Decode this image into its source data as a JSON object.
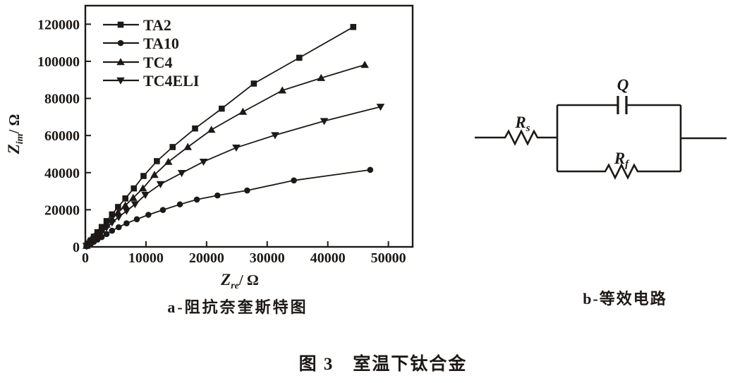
{
  "colors": {
    "ink": "#1d1916",
    "background": "#ffffff"
  },
  "captions": {
    "sub_a": "a-阻抗奈奎斯特图",
    "sub_b": "b-等效电路",
    "main": "图 3　室温下钛合金"
  },
  "circuit": {
    "labels": {
      "rs_main": "R",
      "rs_sub": "s",
      "q": "Q",
      "rf_main": "R",
      "rf_sub": "f"
    }
  },
  "chart_data": {
    "type": "line",
    "title": "",
    "xlabel": {
      "main": "Z",
      "sub": "re",
      "unit": "/ Ω"
    },
    "ylabel": {
      "main": "Z",
      "sub": "im",
      "unit": "/ Ω"
    },
    "xlim": [
      0,
      54000
    ],
    "ylim": [
      0,
      130000
    ],
    "x_ticks": [
      0,
      10000,
      20000,
      30000,
      40000,
      50000
    ],
    "y_ticks": [
      0,
      20000,
      40000,
      60000,
      80000,
      100000,
      120000
    ],
    "grid": false,
    "legend_position": "top-left-inside",
    "series": [
      {
        "name": "TA2",
        "marker": "square",
        "points": [
          [
            200,
            700
          ],
          [
            500,
            1900
          ],
          [
            900,
            3500
          ],
          [
            1400,
            5500
          ],
          [
            2000,
            7900
          ],
          [
            2700,
            10700
          ],
          [
            3500,
            13900
          ],
          [
            4400,
            17500
          ],
          [
            5400,
            21500
          ],
          [
            6600,
            26100
          ],
          [
            8000,
            31500
          ],
          [
            9600,
            38200
          ],
          [
            11800,
            46200
          ],
          [
            14400,
            53800
          ],
          [
            18100,
            63800
          ],
          [
            22500,
            74500
          ],
          [
            27800,
            88000
          ],
          [
            35300,
            101900
          ],
          [
            44200,
            118500
          ]
        ]
      },
      {
        "name": "TA10",
        "marker": "circle",
        "points": [
          [
            200,
            300
          ],
          [
            500,
            900
          ],
          [
            900,
            1700
          ],
          [
            1400,
            2700
          ],
          [
            2000,
            3900
          ],
          [
            2700,
            5300
          ],
          [
            3500,
            6900
          ],
          [
            4400,
            8700
          ],
          [
            5500,
            10600
          ],
          [
            6800,
            12700
          ],
          [
            8500,
            14900
          ],
          [
            10400,
            17300
          ],
          [
            12800,
            19900
          ],
          [
            15600,
            22900
          ],
          [
            18400,
            25500
          ],
          [
            21800,
            27700
          ],
          [
            26700,
            30400
          ],
          [
            34400,
            35800
          ],
          [
            47000,
            41500
          ]
        ]
      },
      {
        "name": "TC4",
        "marker": "triangle-up",
        "points": [
          [
            200,
            600
          ],
          [
            500,
            1600
          ],
          [
            900,
            3000
          ],
          [
            1400,
            4700
          ],
          [
            2000,
            6800
          ],
          [
            2700,
            9200
          ],
          [
            3500,
            12000
          ],
          [
            4400,
            15100
          ],
          [
            5400,
            18500
          ],
          [
            6600,
            22300
          ],
          [
            7900,
            26400
          ],
          [
            9500,
            31500
          ],
          [
            11400,
            38800
          ],
          [
            13700,
            45800
          ],
          [
            16900,
            53800
          ],
          [
            20800,
            63100
          ],
          [
            26000,
            72800
          ],
          [
            32500,
            84300
          ],
          [
            38900,
            91000
          ],
          [
            46100,
            98100
          ]
        ]
      },
      {
        "name": "TC4ELI",
        "marker": "triangle-down",
        "points": [
          [
            200,
            500
          ],
          [
            500,
            1400
          ],
          [
            900,
            2600
          ],
          [
            1400,
            4100
          ],
          [
            2000,
            5900
          ],
          [
            2700,
            8000
          ],
          [
            3500,
            10400
          ],
          [
            4400,
            13100
          ],
          [
            5500,
            16100
          ],
          [
            6800,
            19400
          ],
          [
            8200,
            23000
          ],
          [
            9900,
            28000
          ],
          [
            12400,
            33800
          ],
          [
            15900,
            39800
          ],
          [
            19500,
            45900
          ],
          [
            24900,
            53500
          ],
          [
            31300,
            60200
          ],
          [
            39400,
            67800
          ],
          [
            48700,
            75500
          ]
        ]
      }
    ]
  }
}
